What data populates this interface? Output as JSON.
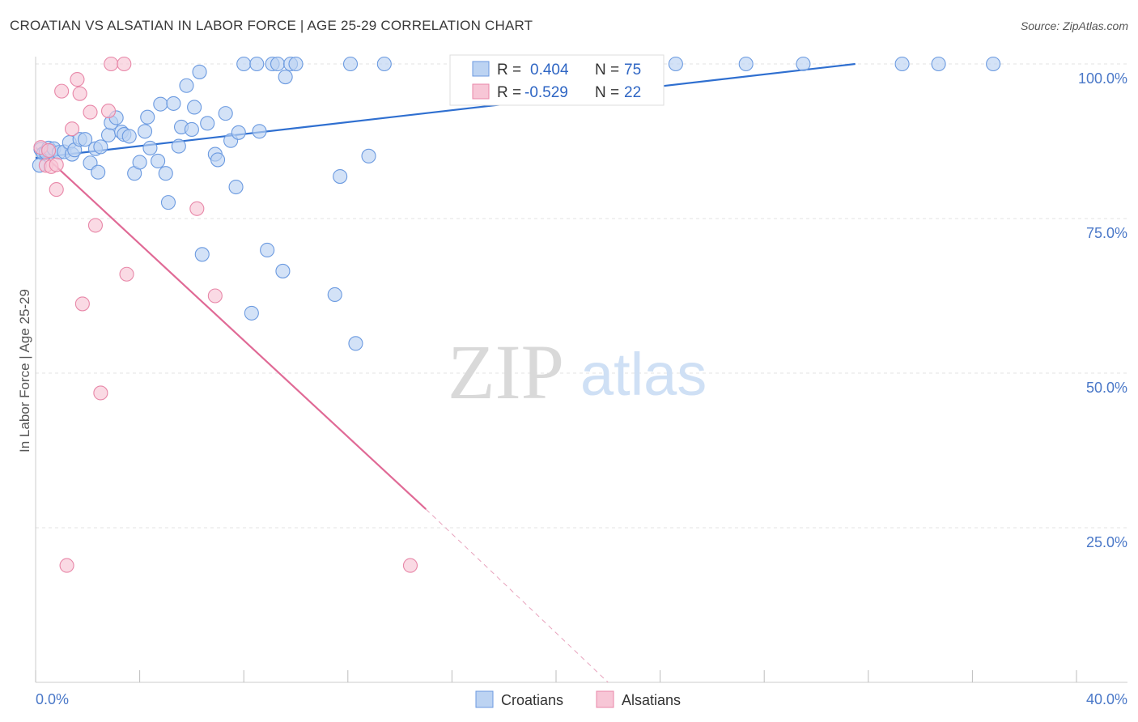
{
  "title": "CROATIAN VS ALSATIAN IN LABOR FORCE | AGE 25-29 CORRELATION CHART",
  "source": "Source: ZipAtlas.com",
  "watermark": {
    "zip": "ZIP",
    "atlas": "atlas"
  },
  "chart_data": {
    "type": "scatter",
    "ylabel": "In Labor Force | Age 25-29",
    "xlim": [
      0,
      40
    ],
    "ylim": [
      0,
      100
    ],
    "x_tick_labels": [
      "0.0%",
      "40.0%"
    ],
    "y_ticks": [
      25,
      50,
      75,
      100
    ],
    "y_tick_labels": [
      "25.0%",
      "50.0%",
      "75.0%",
      "100.0%"
    ],
    "grid": true,
    "legend_position": "bottom",
    "stats": [
      {
        "r_label": "R =",
        "r_value": "0.404",
        "n_label": "N =",
        "n_value": "75"
      },
      {
        "r_label": "R =",
        "r_value": "-0.529",
        "n_label": "N =",
        "n_value": "22"
      }
    ],
    "series": [
      {
        "name": "Croatians",
        "color": "#6b9ae0",
        "fill": "#bcd3f2",
        "trend": {
          "x0": 0,
          "y0": 84.8,
          "x1": 31.5,
          "y1": 100
        },
        "points": [
          [
            0.2,
            86.2
          ],
          [
            0.3,
            85.5
          ],
          [
            0.4,
            85.7
          ],
          [
            0.5,
            86.4
          ],
          [
            0.6,
            85.9
          ],
          [
            0.7,
            86.3
          ],
          [
            0.9,
            85.7
          ],
          [
            1.1,
            85.8
          ],
          [
            1.3,
            87.3
          ],
          [
            1.4,
            85.4
          ],
          [
            1.5,
            86.1
          ],
          [
            1.7,
            87.8
          ],
          [
            1.9,
            87.8
          ],
          [
            2.1,
            84.0
          ],
          [
            2.3,
            86.3
          ],
          [
            2.4,
            82.5
          ],
          [
            2.5,
            86.6
          ],
          [
            2.8,
            88.5
          ],
          [
            2.9,
            90.5
          ],
          [
            3.1,
            91.3
          ],
          [
            3.3,
            89.0
          ],
          [
            3.4,
            88.6
          ],
          [
            3.6,
            88.3
          ],
          [
            3.8,
            82.3
          ],
          [
            4.0,
            84.1
          ],
          [
            4.2,
            89.1
          ],
          [
            4.3,
            91.4
          ],
          [
            4.4,
            86.4
          ],
          [
            4.7,
            84.3
          ],
          [
            4.8,
            93.5
          ],
          [
            5.0,
            82.3
          ],
          [
            5.1,
            77.6
          ],
          [
            5.3,
            93.6
          ],
          [
            5.5,
            86.7
          ],
          [
            5.6,
            89.8
          ],
          [
            5.8,
            96.5
          ],
          [
            6.0,
            89.4
          ],
          [
            6.1,
            93.0
          ],
          [
            6.3,
            98.7
          ],
          [
            6.4,
            69.2
          ],
          [
            6.6,
            90.4
          ],
          [
            6.9,
            85.4
          ],
          [
            7.0,
            84.5
          ],
          [
            7.3,
            92.0
          ],
          [
            7.5,
            87.6
          ],
          [
            7.7,
            80.1
          ],
          [
            7.8,
            88.9
          ],
          [
            8.0,
            100
          ],
          [
            8.3,
            59.7
          ],
          [
            8.5,
            100
          ],
          [
            8.6,
            89.1
          ],
          [
            8.9,
            69.9
          ],
          [
            9.1,
            100
          ],
          [
            9.3,
            100
          ],
          [
            9.5,
            66.5
          ],
          [
            9.6,
            97.9
          ],
          [
            9.8,
            100
          ],
          [
            10.0,
            100
          ],
          [
            11.5,
            62.7
          ],
          [
            11.7,
            81.8
          ],
          [
            12.1,
            100
          ],
          [
            12.3,
            54.8
          ],
          [
            12.8,
            85.1
          ],
          [
            13.4,
            100
          ],
          [
            17.2,
            100
          ],
          [
            18.0,
            100
          ],
          [
            20.0,
            100
          ],
          [
            22.5,
            100
          ],
          [
            24.6,
            100
          ],
          [
            27.3,
            100
          ],
          [
            29.5,
            100
          ],
          [
            33.3,
            100
          ],
          [
            34.7,
            100
          ],
          [
            36.8,
            100
          ],
          [
            0.15,
            83.6
          ]
        ]
      },
      {
        "name": "Alsatians",
        "color": "#e887a8",
        "fill": "#f7c6d6",
        "trend": {
          "x0": 0,
          "y0": 86.5,
          "x1": 15.0,
          "y1": 28.0
        },
        "trend_dashed": {
          "x0": 15.0,
          "y0": 28.0,
          "x1": 22.0,
          "y1": 0
        },
        "points": [
          [
            0.2,
            86.5
          ],
          [
            0.4,
            83.6
          ],
          [
            0.6,
            83.4
          ],
          [
            0.8,
            83.7
          ],
          [
            0.8,
            79.7
          ],
          [
            1.0,
            95.6
          ],
          [
            1.2,
            18.9
          ],
          [
            1.4,
            89.5
          ],
          [
            1.6,
            97.5
          ],
          [
            1.7,
            95.2
          ],
          [
            1.8,
            61.2
          ],
          [
            2.1,
            92.2
          ],
          [
            2.3,
            73.9
          ],
          [
            2.5,
            46.8
          ],
          [
            2.8,
            92.4
          ],
          [
            2.9,
            100
          ],
          [
            3.4,
            100
          ],
          [
            3.5,
            66.0
          ],
          [
            6.2,
            76.6
          ],
          [
            6.9,
            62.5
          ],
          [
            14.4,
            18.9
          ],
          [
            0.5,
            86.0
          ]
        ]
      }
    ]
  }
}
